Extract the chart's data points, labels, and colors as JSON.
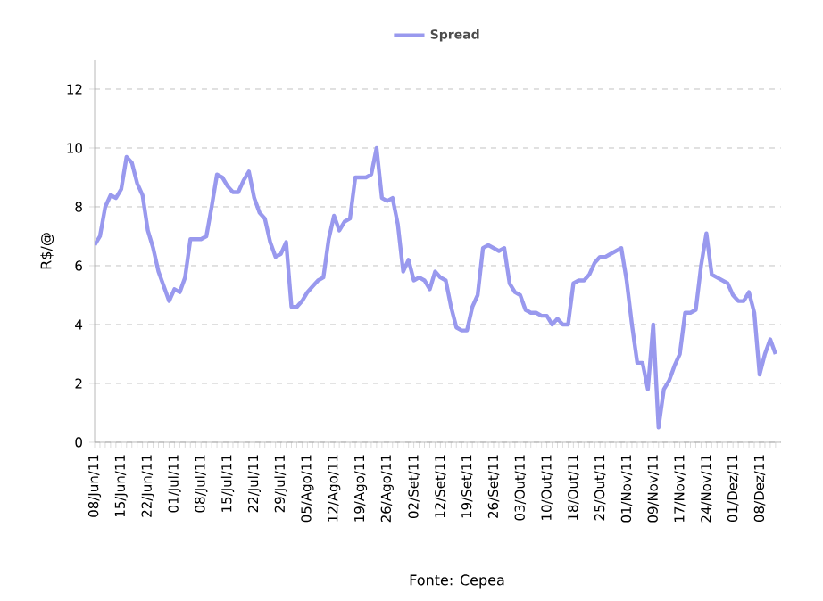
{
  "chart_data": {
    "type": "line",
    "ylabel": "R$/@",
    "annotations": [
      "Fonte: Cepea"
    ],
    "categories": [
      "08/Jun/11",
      null,
      null,
      null,
      null,
      "15/Jun/11",
      null,
      null,
      null,
      null,
      "22/Jun/11",
      null,
      null,
      null,
      null,
      "01/Jul/11",
      null,
      null,
      null,
      null,
      "08/Jul/11",
      null,
      null,
      null,
      null,
      "15/Jul/11",
      null,
      null,
      null,
      null,
      "22/Jul/11",
      null,
      null,
      null,
      null,
      "29/Jul/11",
      null,
      null,
      null,
      null,
      "05/Ago/11",
      null,
      null,
      null,
      null,
      "12/Ago/11",
      null,
      null,
      null,
      null,
      "19/Ago/11",
      null,
      null,
      null,
      null,
      "26/Ago/11",
      null,
      null,
      null,
      null,
      "02/Set/11",
      null,
      null,
      null,
      null,
      "12/Set/11",
      null,
      null,
      null,
      null,
      "19/Set/11",
      null,
      null,
      null,
      null,
      "26/Set/11",
      null,
      null,
      null,
      null,
      "03/Out/11",
      null,
      null,
      null,
      null,
      "10/Out/11",
      null,
      null,
      null,
      null,
      "18/Out/11",
      null,
      null,
      null,
      null,
      "25/Out/11",
      null,
      null,
      null,
      null,
      "01/Nov/11",
      null,
      null,
      null,
      null,
      "09/Nov/11",
      null,
      null,
      null,
      null,
      "17/Nov/11",
      null,
      null,
      null,
      null,
      "24/Nov/11",
      null,
      null,
      null,
      null,
      "01/Dez/11",
      null,
      null,
      null,
      null,
      "08/Dez/11",
      null,
      null,
      null
    ],
    "series": [
      {
        "name": "Spread",
        "color": "#9999ee",
        "values": [
          6.7,
          7.0,
          8.0,
          8.4,
          8.3,
          8.6,
          9.7,
          9.5,
          8.8,
          8.4,
          7.2,
          6.6,
          5.8,
          5.3,
          4.8,
          5.2,
          5.1,
          5.6,
          6.9,
          6.9,
          6.9,
          7.0,
          8.0,
          9.1,
          9.0,
          8.7,
          8.5,
          8.5,
          8.9,
          9.2,
          8.3,
          7.8,
          7.6,
          6.8,
          6.3,
          6.4,
          6.8,
          4.6,
          4.6,
          4.8,
          5.1,
          5.3,
          5.5,
          5.6,
          6.9,
          7.7,
          7.2,
          7.5,
          7.6,
          9.0,
          9.0,
          9.0,
          9.1,
          10.0,
          8.3,
          8.2,
          8.3,
          7.4,
          5.8,
          6.2,
          5.5,
          5.6,
          5.5,
          5.2,
          5.8,
          5.6,
          5.5,
          4.6,
          3.9,
          3.8,
          3.8,
          4.6,
          5.0,
          6.6,
          6.7,
          6.6,
          6.5,
          6.6,
          5.4,
          5.1,
          5.0,
          4.5,
          4.4,
          4.4,
          4.3,
          4.3,
          4.0,
          4.2,
          4.0,
          4.0,
          5.4,
          5.5,
          5.5,
          5.7,
          6.1,
          6.3,
          6.3,
          6.4,
          6.5,
          6.6,
          5.5,
          4.0,
          2.7,
          2.7,
          1.8,
          4.0,
          0.5,
          1.8,
          2.1,
          2.6,
          3.0,
          4.4,
          4.4,
          4.5,
          6.0,
          7.1,
          5.7,
          5.6,
          5.5,
          5.4,
          5.0,
          4.8,
          4.8,
          5.1,
          4.4,
          2.3,
          3.0,
          3.5,
          3.0
        ]
      }
    ],
    "ylim": [
      0,
      13
    ],
    "yticks": [
      0,
      2,
      4,
      6,
      8,
      10,
      12
    ],
    "grid": "y",
    "legend": "top",
    "marker": "none",
    "line_style": "solid"
  }
}
